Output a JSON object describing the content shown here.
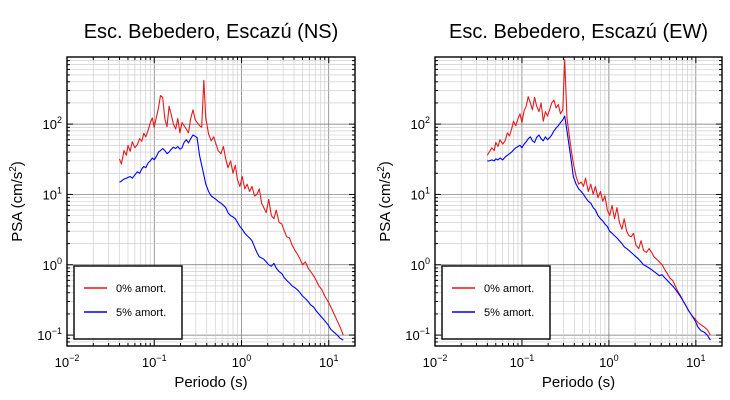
{
  "chart_data": [
    {
      "type": "line",
      "title": "Esc. Bebedero, Escazú (NS)",
      "xlabel": "Periodo (s)",
      "ylabel_main": "PSA (cm/s",
      "ylabel_sup": "2",
      "ylabel_close": ")",
      "xscale": "log",
      "yscale": "log",
      "xlim": [
        0.01,
        20
      ],
      "ylim": [
        0.07,
        900
      ],
      "grid": true,
      "legend_position": "bottom-left",
      "x_ticks": [
        {
          "base": "10",
          "exp": "−2",
          "value": 0.01
        },
        {
          "base": "10",
          "exp": "−1",
          "value": 0.1
        },
        {
          "base": "10",
          "exp": "0",
          "value": 1
        },
        {
          "base": "10",
          "exp": "1",
          "value": 10
        }
      ],
      "y_ticks": [
        {
          "base": "10",
          "exp": "−1",
          "value": 0.1
        },
        {
          "base": "10",
          "exp": "0",
          "value": 1
        },
        {
          "base": "10",
          "exp": "1",
          "value": 10
        },
        {
          "base": "10",
          "exp": "2",
          "value": 100
        }
      ],
      "series": [
        {
          "name": "0% amort.",
          "color": "#e41a1c",
          "x": [
            0.04,
            0.042,
            0.045,
            0.048,
            0.05,
            0.053,
            0.056,
            0.06,
            0.064,
            0.068,
            0.072,
            0.076,
            0.08,
            0.085,
            0.09,
            0.095,
            0.1,
            0.106,
            0.112,
            0.118,
            0.125,
            0.132,
            0.14,
            0.148,
            0.157,
            0.166,
            0.176,
            0.186,
            0.197,
            0.208,
            0.22,
            0.233,
            0.247,
            0.262,
            0.278,
            0.295,
            0.31,
            0.33,
            0.35,
            0.37,
            0.39,
            0.42,
            0.45,
            0.48,
            0.51,
            0.54,
            0.58,
            0.62,
            0.66,
            0.7,
            0.75,
            0.8,
            0.85,
            0.9,
            0.96,
            1.02,
            1.09,
            1.16,
            1.24,
            1.32,
            1.41,
            1.5,
            1.6,
            1.7,
            1.8,
            1.92,
            2.05,
            2.2,
            2.35,
            2.5,
            2.7,
            2.9,
            3.1,
            3.3,
            3.55,
            3.8,
            4.1,
            4.4,
            4.7,
            5.0,
            5.4,
            5.8,
            6.2,
            6.7,
            7.2,
            7.7,
            8.3,
            9.0,
            9.8,
            10.6,
            11.5,
            12.5,
            13.5,
            14.7
          ],
          "y": [
            32,
            27,
            42,
            36,
            50,
            41,
            56,
            46,
            51,
            62,
            57,
            74,
            66,
            82,
            105,
            122,
            90,
            128,
            170,
            255,
            240,
            120,
            92,
            180,
            135,
            100,
            85,
            120,
            75,
            105,
            95,
            85,
            75,
            120,
            160,
            115,
            105,
            95,
            90,
            420,
            120,
            72,
            58,
            66,
            52,
            42,
            38,
            48,
            32,
            24,
            30,
            20,
            26,
            16,
            13,
            18,
            12,
            14,
            11,
            13,
            9.5,
            10,
            12,
            7.5,
            6.5,
            5.5,
            8.5,
            5.0,
            4.5,
            6.0,
            4.0,
            3.8,
            3.0,
            2.5,
            2.4,
            1.9,
            1.6,
            1.4,
            1.2,
            1.0,
            1.1,
            0.9,
            0.8,
            0.7,
            0.6,
            0.5,
            0.45,
            0.36,
            0.3,
            0.25,
            0.2,
            0.16,
            0.13,
            0.1
          ]
        },
        {
          "name": "5% amort.",
          "color": "#0000ff",
          "x": [
            0.04,
            0.042,
            0.045,
            0.048,
            0.05,
            0.053,
            0.056,
            0.06,
            0.064,
            0.068,
            0.072,
            0.076,
            0.08,
            0.085,
            0.09,
            0.095,
            0.1,
            0.106,
            0.112,
            0.118,
            0.125,
            0.132,
            0.14,
            0.148,
            0.157,
            0.166,
            0.176,
            0.186,
            0.197,
            0.208,
            0.22,
            0.233,
            0.247,
            0.262,
            0.278,
            0.295,
            0.31,
            0.33,
            0.35,
            0.37,
            0.39,
            0.42,
            0.45,
            0.48,
            0.51,
            0.54,
            0.58,
            0.62,
            0.66,
            0.7,
            0.75,
            0.8,
            0.85,
            0.9,
            0.96,
            1.02,
            1.09,
            1.16,
            1.24,
            1.32,
            1.41,
            1.5,
            1.6,
            1.7,
            1.8,
            1.92,
            2.05,
            2.2,
            2.35,
            2.5,
            2.7,
            2.9,
            3.1,
            3.3,
            3.55,
            3.8,
            4.1,
            4.4,
            4.7,
            5.0,
            5.4,
            5.8,
            6.2,
            6.7,
            7.2,
            7.7,
            8.3,
            9.0,
            9.8,
            10.6,
            11.5,
            12.5,
            13.5,
            14.7
          ],
          "y": [
            15,
            15.5,
            16.5,
            17,
            17.5,
            18,
            17,
            19,
            21,
            20,
            23,
            25,
            24,
            28,
            30,
            33,
            31,
            35,
            40,
            42,
            45,
            42,
            38,
            40,
            44,
            47,
            45,
            48,
            44,
            46,
            55,
            60,
            54,
            62,
            70,
            67,
            64,
            36,
            26,
            19,
            14,
            11,
            9.5,
            9,
            8.5,
            8,
            7.5,
            7,
            6.5,
            5.5,
            5.0,
            4.8,
            4.5,
            4.0,
            3.5,
            3.2,
            2.8,
            2.6,
            2.4,
            2.2,
            1.8,
            1.5,
            1.3,
            1.25,
            1.2,
            1.1,
            1.0,
            0.95,
            1.05,
            0.9,
            0.8,
            0.75,
            0.65,
            0.6,
            0.55,
            0.5,
            0.47,
            0.44,
            0.4,
            0.36,
            0.33,
            0.3,
            0.27,
            0.25,
            0.22,
            0.2,
            0.18,
            0.16,
            0.14,
            0.12,
            0.11,
            0.1,
            0.09,
            0.085
          ]
        }
      ]
    },
    {
      "type": "line",
      "title": "Esc. Bebedero, Escazú (EW)",
      "xlabel": "Periodo (s)",
      "ylabel_main": "PSA (cm/s",
      "ylabel_sup": "2",
      "ylabel_close": ")",
      "xscale": "log",
      "yscale": "log",
      "xlim": [
        0.01,
        20
      ],
      "ylim": [
        0.07,
        900
      ],
      "grid": true,
      "legend_position": "bottom-left",
      "x_ticks": [
        {
          "base": "10",
          "exp": "−2",
          "value": 0.01
        },
        {
          "base": "10",
          "exp": "−1",
          "value": 0.1
        },
        {
          "base": "10",
          "exp": "0",
          "value": 1
        },
        {
          "base": "10",
          "exp": "1",
          "value": 10
        }
      ],
      "y_ticks": [
        {
          "base": "10",
          "exp": "−1",
          "value": 0.1
        },
        {
          "base": "10",
          "exp": "0",
          "value": 1
        },
        {
          "base": "10",
          "exp": "1",
          "value": 10
        },
        {
          "base": "10",
          "exp": "2",
          "value": 100
        }
      ],
      "series": [
        {
          "name": "0% amort.",
          "color": "#e41a1c",
          "x": [
            0.04,
            0.042,
            0.045,
            0.048,
            0.05,
            0.053,
            0.056,
            0.06,
            0.064,
            0.068,
            0.072,
            0.076,
            0.08,
            0.085,
            0.09,
            0.095,
            0.1,
            0.106,
            0.112,
            0.118,
            0.125,
            0.132,
            0.14,
            0.148,
            0.157,
            0.166,
            0.176,
            0.186,
            0.197,
            0.208,
            0.22,
            0.233,
            0.247,
            0.262,
            0.278,
            0.295,
            0.31,
            0.33,
            0.35,
            0.37,
            0.39,
            0.42,
            0.45,
            0.48,
            0.51,
            0.54,
            0.58,
            0.62,
            0.66,
            0.7,
            0.75,
            0.8,
            0.85,
            0.9,
            0.96,
            1.02,
            1.09,
            1.16,
            1.24,
            1.32,
            1.41,
            1.5,
            1.6,
            1.7,
            1.8,
            1.92,
            2.05,
            2.2,
            2.35,
            2.5,
            2.7,
            2.9,
            3.1,
            3.3,
            3.55,
            3.8,
            4.1,
            4.4,
            4.7,
            5.0,
            5.4,
            5.8,
            6.2,
            6.7,
            7.2,
            7.7,
            8.3,
            9.0,
            9.8,
            10.6,
            11.5,
            12.5,
            13.5,
            14.7
          ],
          "y": [
            36,
            40,
            46,
            42,
            55,
            48,
            60,
            52,
            58,
            75,
            68,
            85,
            110,
            95,
            120,
            140,
            105,
            155,
            180,
            245,
            200,
            160,
            240,
            180,
            150,
            200,
            110,
            150,
            130,
            160,
            200,
            220,
            170,
            190,
            140,
            160,
            820,
            120,
            70,
            42,
            28,
            18,
            14,
            15,
            13,
            17,
            11,
            14,
            10,
            13,
            9,
            11,
            8,
            9.5,
            6,
            5,
            7,
            4.5,
            6.5,
            4,
            3.2,
            4.5,
            3.0,
            2.6,
            2.5,
            2.8,
            1.9,
            1.7,
            2.2,
            1.6,
            1.5,
            1.7,
            1.5,
            1.3,
            1.2,
            1.1,
            1.0,
            0.85,
            0.75,
            0.65,
            0.6,
            0.5,
            0.42,
            0.36,
            0.3,
            0.26,
            0.22,
            0.19,
            0.17,
            0.15,
            0.14,
            0.13,
            0.12,
            0.1
          ]
        },
        {
          "name": "5% amort.",
          "color": "#0000ff",
          "x": [
            0.04,
            0.042,
            0.045,
            0.048,
            0.05,
            0.053,
            0.056,
            0.06,
            0.064,
            0.068,
            0.072,
            0.076,
            0.08,
            0.085,
            0.09,
            0.095,
            0.1,
            0.106,
            0.112,
            0.118,
            0.125,
            0.132,
            0.14,
            0.148,
            0.157,
            0.166,
            0.176,
            0.186,
            0.197,
            0.208,
            0.22,
            0.233,
            0.247,
            0.262,
            0.278,
            0.295,
            0.31,
            0.33,
            0.35,
            0.37,
            0.39,
            0.42,
            0.45,
            0.48,
            0.51,
            0.54,
            0.58,
            0.62,
            0.66,
            0.7,
            0.75,
            0.8,
            0.85,
            0.9,
            0.96,
            1.02,
            1.09,
            1.16,
            1.24,
            1.32,
            1.41,
            1.5,
            1.6,
            1.7,
            1.8,
            1.92,
            2.05,
            2.2,
            2.35,
            2.5,
            2.7,
            2.9,
            3.1,
            3.3,
            3.55,
            3.8,
            4.1,
            4.4,
            4.7,
            5.0,
            5.4,
            5.8,
            6.2,
            6.7,
            7.2,
            7.7,
            8.3,
            9.0,
            9.8,
            10.6,
            11.5,
            12.5,
            13.5,
            14.7
          ],
          "y": [
            30,
            30,
            31,
            30,
            32,
            31,
            33,
            31,
            34,
            36,
            38,
            40,
            43,
            46,
            48,
            50,
            46,
            52,
            56,
            62,
            66,
            58,
            55,
            65,
            70,
            62,
            58,
            66,
            60,
            64,
            70,
            80,
            88,
            95,
            105,
            115,
            130,
            80,
            48,
            30,
            18,
            14,
            12,
            11,
            10,
            9,
            8,
            7.5,
            6.5,
            6,
            5,
            4.5,
            4.2,
            3.8,
            3.5,
            3.0,
            2.8,
            2.6,
            2.4,
            2.2,
            2.0,
            1.8,
            1.7,
            1.6,
            1.5,
            1.4,
            1.3,
            1.2,
            1.1,
            1.0,
            0.95,
            0.9,
            0.85,
            0.8,
            0.75,
            0.7,
            0.72,
            0.65,
            0.6,
            0.55,
            0.5,
            0.45,
            0.4,
            0.35,
            0.3,
            0.26,
            0.22,
            0.19,
            0.16,
            0.13,
            0.115,
            0.11,
            0.1,
            0.085
          ]
        }
      ]
    }
  ]
}
